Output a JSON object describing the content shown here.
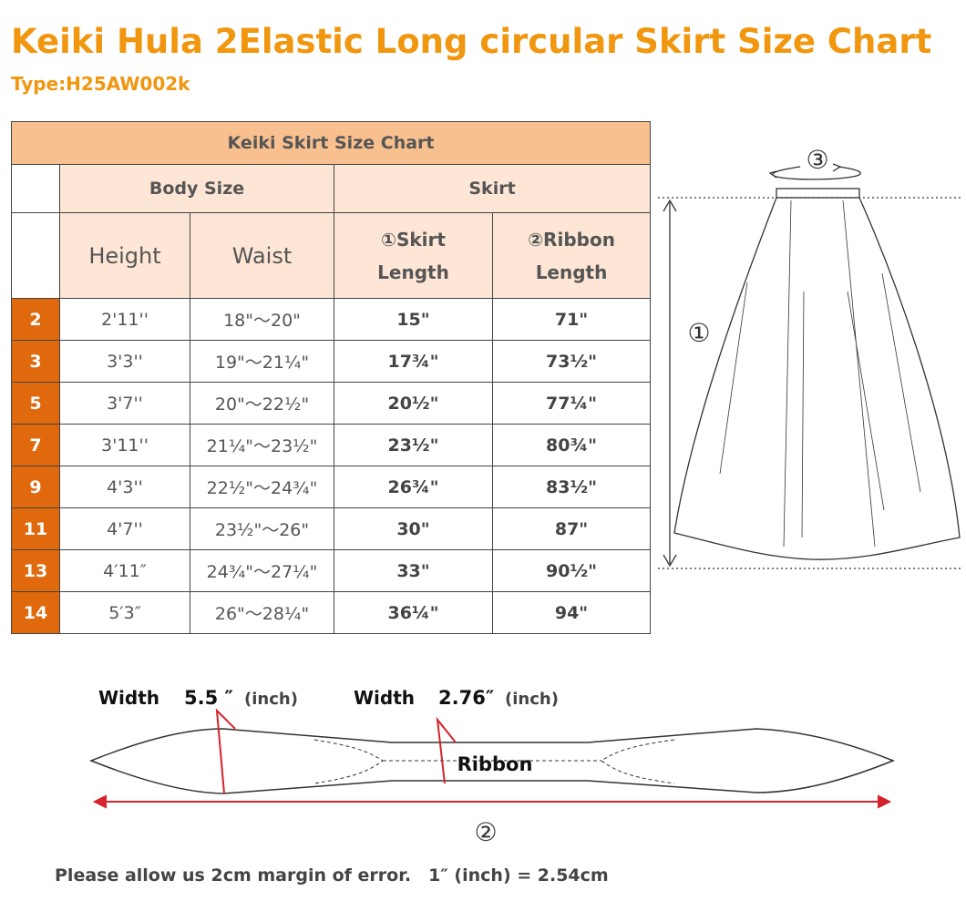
{
  "header": {
    "title": "Keiki Hula 2Elastic Long circular Skirt Size Chart",
    "type": "Type:H25AW002k"
  },
  "table": {
    "title": "Keiki Skirt Size Chart",
    "groups": [
      "Body Size",
      "Skirt"
    ],
    "columns": [
      "Height",
      "Waist",
      "①Skirt\nLength",
      "②Ribbon\nLength"
    ],
    "rows": [
      [
        "2",
        "2'11''",
        "18\"～20\"",
        "15\"",
        "71\""
      ],
      [
        "3",
        "3'3''",
        "19\"～21¼\"",
        "17¾\"",
        "73½\""
      ],
      [
        "5",
        "3'7''",
        "20\"～22½\"",
        "20½\"",
        "77¼\""
      ],
      [
        "7",
        "3'11''",
        "21¼\"～23½\"",
        "23½\"",
        "80¾\""
      ],
      [
        "9",
        "4'3''",
        "22½\"～24¾\"",
        "26¾\"",
        "83½\""
      ],
      [
        "11",
        "4'7''",
        "23½\"～26\"",
        "30\"",
        "87\""
      ],
      [
        "13",
        "4′11″",
        "24¾\"～27¼\"",
        "33\"",
        "90½\""
      ],
      [
        "14",
        "5′3″",
        "26\"～28¼\"",
        "36¼\"",
        "94\""
      ]
    ]
  },
  "skirt_diagram": {
    "waist_marker": "③",
    "length_marker": "①"
  },
  "ribbon_diagram": {
    "wide_label": "Width",
    "wide_value": "5.5 ″",
    "wide_unit": "(inch)",
    "narrow_label": "Width",
    "narrow_value": "2.76″",
    "narrow_unit": "(inch)",
    "ribbon_label": "Ribbon",
    "length_marker": "②"
  },
  "footer": "Please allow us 2cm margin of error.　1″ (inch) = 2.54cm"
}
